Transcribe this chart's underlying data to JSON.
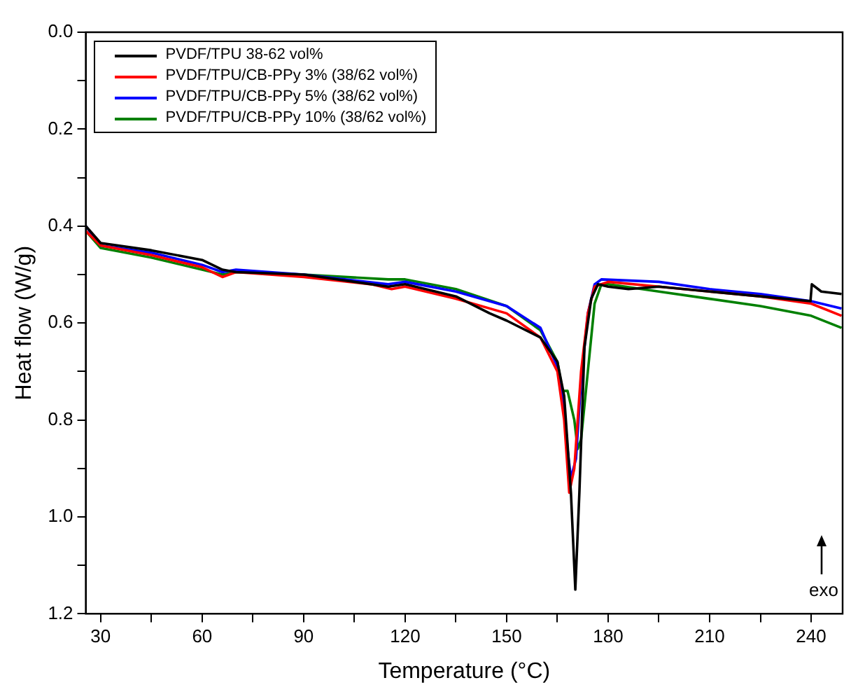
{
  "chart_data": {
    "type": "line",
    "xlabel": "Temperature (°C)",
    "ylabel": "Heat flow (W/g)",
    "xlim": [
      25.6,
      249.3
    ],
    "ylim": [
      1.2,
      0.0
    ],
    "xticks": [
      30,
      {
        "value": 45,
        "label": null
      },
      60,
      {
        "value": 75,
        "label": null
      },
      90,
      {
        "value": 105,
        "label": null
      },
      120,
      {
        "value": 135,
        "label": null
      },
      150,
      {
        "value": 165,
        "label": null
      },
      180,
      {
        "value": 195,
        "label": null
      },
      210,
      {
        "value": 225,
        "label": null
      },
      240
    ],
    "yticks": [
      {
        "value": 0,
        "label": "0.0"
      },
      {
        "value": 0.1,
        "label": null
      },
      0.2,
      {
        "value": 0.3,
        "label": null
      },
      0.4,
      {
        "value": 0.5,
        "label": null
      },
      0.6,
      {
        "value": 0.7,
        "label": null
      },
      0.8,
      {
        "value": 0.9,
        "label": null
      },
      {
        "value": 1,
        "label": "1.0"
      },
      {
        "value": 1.1,
        "label": null
      },
      1.2
    ],
    "grid": false,
    "legend": "top left",
    "marker": "none",
    "line_style": "solid",
    "annotations": [
      "exo"
    ],
    "series": [
      {
        "name": "PVDF/TPU 38-62 vol%",
        "color": "#000000",
        "x": [
          25.6,
          30,
          45,
          60,
          66,
          70,
          90,
          115,
          120,
          135,
          145,
          150,
          160,
          165,
          167,
          169,
          170.3,
          171.5,
          173,
          175,
          177,
          180,
          186,
          195,
          210,
          225,
          239.8,
          240.2,
          243,
          249
        ],
        "values": [
          0.4,
          0.435,
          0.45,
          0.47,
          0.49,
          0.495,
          0.5,
          0.525,
          0.52,
          0.545,
          0.58,
          0.595,
          0.63,
          0.68,
          0.75,
          0.95,
          1.15,
          0.95,
          0.65,
          0.55,
          0.52,
          0.525,
          0.53,
          0.525,
          0.535,
          0.545,
          0.555,
          0.52,
          0.535,
          0.54
        ]
      },
      {
        "name": "PVDF/TPU/CB-PPy 3% (38/62 vol%)",
        "color": "#ff0000",
        "x": [
          25.6,
          30,
          45,
          60,
          66,
          70,
          90,
          110,
          116,
          120,
          135,
          150,
          160,
          165,
          167,
          168.5,
          170,
          172,
          174,
          176,
          180,
          195,
          210,
          225,
          240,
          249
        ],
        "values": [
          0.41,
          0.44,
          0.46,
          0.485,
          0.505,
          0.495,
          0.505,
          0.52,
          0.53,
          0.525,
          0.55,
          0.58,
          0.63,
          0.7,
          0.8,
          0.95,
          0.9,
          0.7,
          0.58,
          0.525,
          0.515,
          0.525,
          0.535,
          0.545,
          0.56,
          0.585
        ]
      },
      {
        "name": "PVDF/TPU/CB-PPy 5% (38/62 vol%)",
        "color": "#0000ff",
        "x": [
          25.6,
          30,
          45,
          60,
          66,
          70,
          90,
          115,
          120,
          135,
          150,
          160,
          165,
          167,
          168,
          169,
          170.5,
          172,
          174,
          176,
          178,
          195,
          210,
          225,
          240,
          249
        ],
        "values": [
          0.4,
          0.44,
          0.455,
          0.48,
          0.495,
          0.49,
          0.5,
          0.52,
          0.515,
          0.535,
          0.565,
          0.61,
          0.69,
          0.77,
          0.86,
          0.92,
          0.88,
          0.72,
          0.58,
          0.52,
          0.51,
          0.515,
          0.53,
          0.54,
          0.555,
          0.57
        ]
      },
      {
        "name": "PVDF/TPU/CB-PPy 10% (38/62 vol%)",
        "color": "#008000",
        "x": [
          25.6,
          30,
          45,
          60,
          66,
          70,
          90,
          115,
          120,
          135,
          150,
          160,
          165,
          166.5,
          168,
          170,
          171,
          172,
          174,
          176,
          178,
          180,
          195,
          210,
          225,
          240,
          249
        ],
        "values": [
          0.41,
          0.445,
          0.465,
          0.49,
          0.5,
          0.495,
          0.5,
          0.51,
          0.51,
          0.53,
          0.565,
          0.615,
          0.68,
          0.74,
          0.74,
          0.8,
          0.86,
          0.84,
          0.7,
          0.56,
          0.52,
          0.52,
          0.535,
          0.55,
          0.565,
          0.585,
          0.61
        ]
      }
    ]
  }
}
